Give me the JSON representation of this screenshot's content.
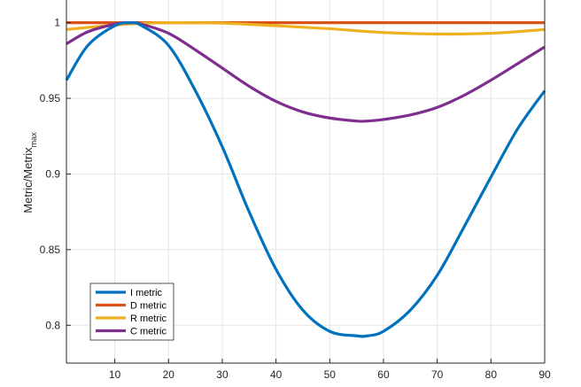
{
  "chart_data": {
    "type": "line",
    "title": "",
    "xlabel": "",
    "ylabel": "Metric/Metrix",
    "ylabel_subscript": "max",
    "xlim": [
      1,
      90
    ],
    "ylim": [
      0.775,
      1.015
    ],
    "xticks": [
      10,
      20,
      30,
      40,
      50,
      60,
      70,
      80,
      90
    ],
    "yticks": [
      0.8,
      0.85,
      0.9,
      0.95,
      1
    ],
    "ytick_labels": [
      "0.8",
      "0.85",
      "0.9",
      "0.95",
      "1"
    ],
    "grid": true,
    "legend_position": "bottom-left",
    "series": [
      {
        "name": "I metric",
        "color": "#0072BD",
        "x": [
          1,
          5,
          10,
          13,
          15,
          20,
          25,
          30,
          35,
          40,
          45,
          50,
          55,
          57,
          60,
          65,
          70,
          75,
          80,
          85,
          90
        ],
        "y": [
          0.962,
          0.985,
          0.998,
          1.0,
          0.998,
          0.985,
          0.955,
          0.918,
          0.875,
          0.837,
          0.81,
          0.796,
          0.793,
          0.793,
          0.796,
          0.81,
          0.833,
          0.865,
          0.898,
          0.93,
          0.955
        ]
      },
      {
        "name": "D metric",
        "color": "#D95319",
        "x": [
          1,
          90
        ],
        "y": [
          1.0,
          1.0
        ]
      },
      {
        "name": "R metric",
        "color": "#EDB120",
        "x": [
          1,
          10,
          15,
          20,
          30,
          40,
          50,
          60,
          70,
          80,
          90
        ],
        "y": [
          0.9955,
          0.9985,
          0.9995,
          1.0,
          0.9997,
          0.998,
          0.996,
          0.9935,
          0.9925,
          0.993,
          0.9955
        ]
      },
      {
        "name": "C metric",
        "color": "#7E2F8E",
        "x": [
          1,
          5,
          10,
          13,
          15,
          20,
          25,
          30,
          35,
          40,
          45,
          50,
          55,
          57,
          60,
          65,
          70,
          75,
          80,
          85,
          90
        ],
        "y": [
          0.986,
          0.994,
          0.999,
          1.0,
          0.999,
          0.993,
          0.982,
          0.97,
          0.958,
          0.948,
          0.941,
          0.937,
          0.935,
          0.935,
          0.936,
          0.939,
          0.944,
          0.952,
          0.962,
          0.973,
          0.984
        ]
      }
    ]
  }
}
